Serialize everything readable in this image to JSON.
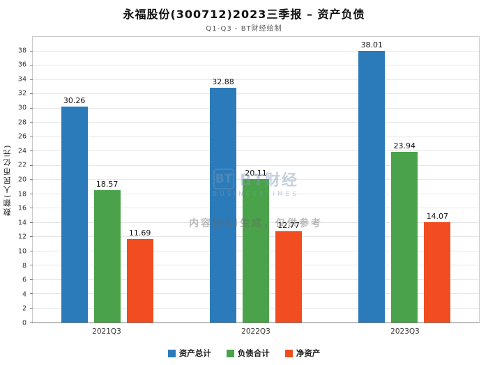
{
  "header": {
    "title": "永福股份(300712)2023三季报 – 资产负债",
    "subtitle": "Q1-Q3 - BT财经绘制"
  },
  "watermark": {
    "logo_text": "BT",
    "brand": "BT财经",
    "brand_sub": "BUSINESSTIMES",
    "notice": "内容由AI生成，仅供参考"
  },
  "chart_data": {
    "type": "bar",
    "title": "永福股份(300712)2023三季报 – 资产负债",
    "subtitle": "Q1-Q3 - BT财经绘制",
    "categories": [
      "2021Q3",
      "2022Q3",
      "2023Q3"
    ],
    "series": [
      {
        "name": "资产总计",
        "color": "#2b7bba",
        "values": [
          30.26,
          32.88,
          38.01
        ]
      },
      {
        "name": "负债合计",
        "color": "#4aa34a",
        "values": [
          18.57,
          20.11,
          23.94
        ]
      },
      {
        "name": "净资产",
        "color": "#f14d20",
        "values": [
          11.69,
          12.77,
          14.07
        ]
      }
    ],
    "xlabel": "",
    "ylabel": "数额(人民币亿元)",
    "ylim": [
      0,
      40
    ],
    "ytick_step": 2,
    "ytick_max": 38,
    "grid": true,
    "legend_position": "bottom"
  }
}
